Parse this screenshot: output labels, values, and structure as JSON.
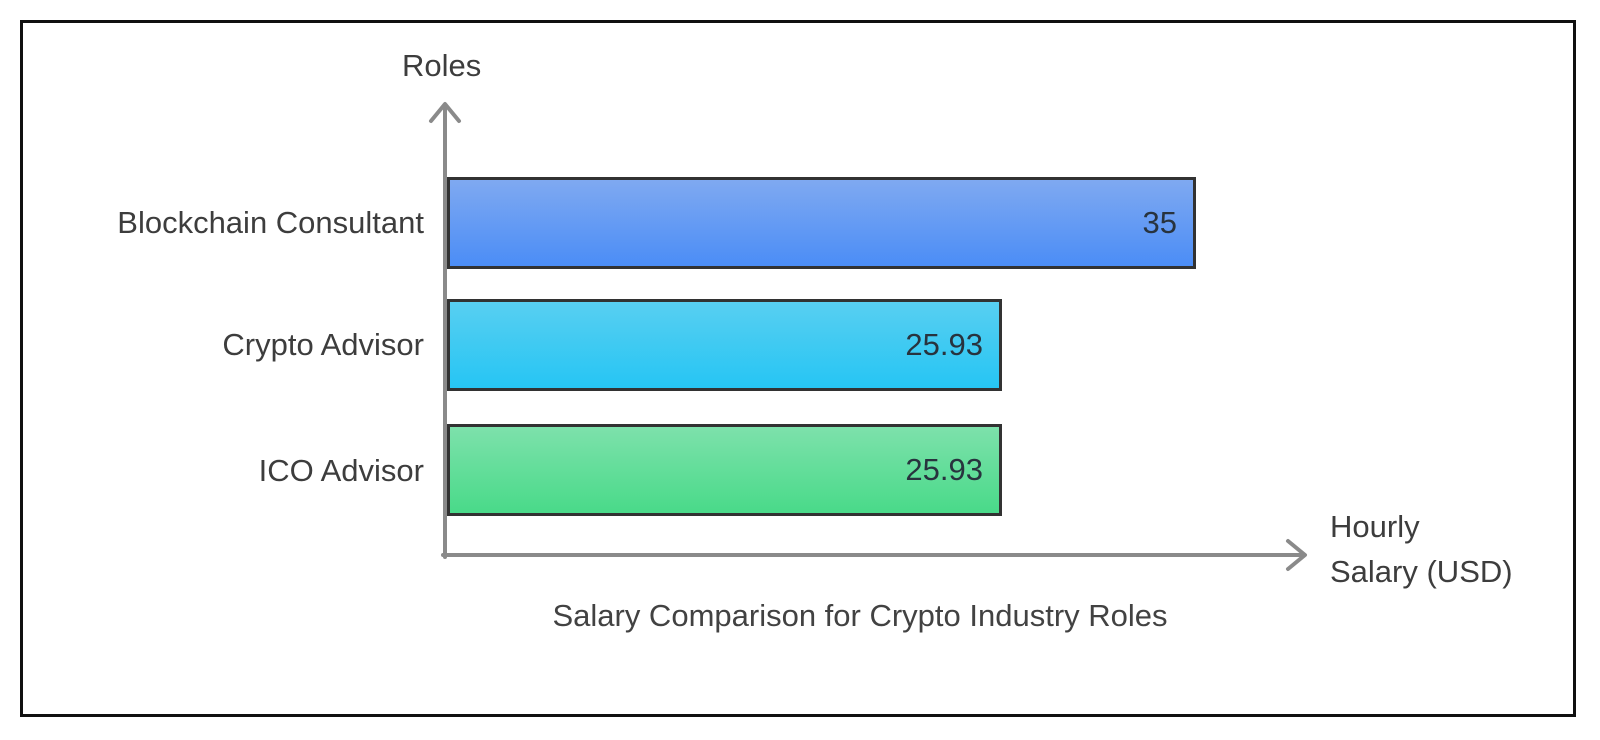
{
  "chart_data": {
    "type": "bar",
    "orientation": "horizontal",
    "title": "Salary Comparison for Crypto Industry Roles",
    "xlabel": "Hourly\nSalary (USD)",
    "ylabel": "Roles",
    "categories": [
      "Blockchain Consultant",
      "Crypto Advisor",
      "ICO Advisor"
    ],
    "values": [
      35,
      25.93,
      25.93
    ],
    "value_labels": [
      "35",
      "25.93",
      "25.93"
    ],
    "xlim": [
      0,
      35
    ],
    "grid": false,
    "legend": false,
    "bar_colors": [
      {
        "top": "#7fa9f1",
        "bottom": "#4b8df6"
      },
      {
        "top": "#58cff2",
        "bottom": "#26c5f3"
      },
      {
        "top": "#7de1ab",
        "bottom": "#49da89"
      }
    ],
    "bar_border_color": "#323232",
    "axis_color": "#8a8a8a",
    "frame_color": "#101010",
    "label_text_color": "#3d3d3d",
    "value_text_color": "#28333e"
  }
}
